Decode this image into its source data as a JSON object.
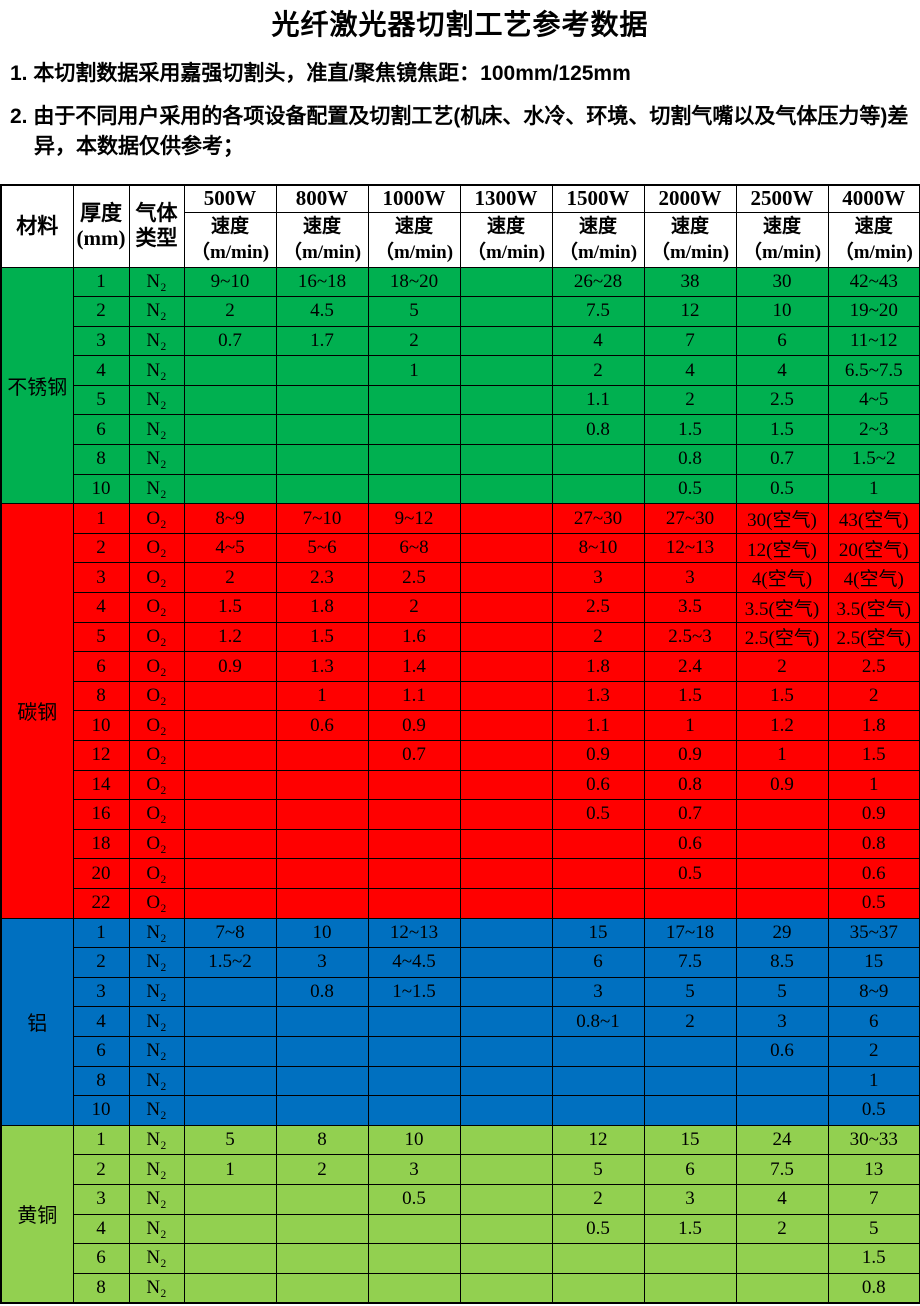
{
  "title": "光纤激光器切割工艺参考数据",
  "notes": {
    "note1": "1. 本切割数据采用嘉强切割头，准直/聚焦镜焦距：100mm/125mm",
    "note2": "2. 由于不同用户采用的各项设备配置及切割工艺(机床、水冷、环境、切割气嘴以及气体压力等)差异，本数据仅供参考；"
  },
  "table": {
    "header": {
      "material": "材料",
      "thickness": "厚度\n(mm)",
      "gas": "气体\n类型",
      "powers": [
        "500W",
        "800W",
        "1000W",
        "1300W",
        "1500W",
        "2000W",
        "2500W",
        "4000W"
      ],
      "speed_label": "速度\n（m/min)"
    },
    "sections": [
      {
        "material": "不锈钢",
        "key": "stainless-steel",
        "color": "#00B050",
        "gas": "N₂",
        "rows": [
          {
            "thickness": "1",
            "gas": "N₂",
            "speeds": [
              "9~10",
              "16~18",
              "18~20",
              "",
              "26~28",
              "38",
              "30",
              "42~43"
            ]
          },
          {
            "thickness": "2",
            "gas": "N₂",
            "speeds": [
              "2",
              "4.5",
              "5",
              "",
              "7.5",
              "12",
              "10",
              "19~20"
            ]
          },
          {
            "thickness": "3",
            "gas": "N₂",
            "speeds": [
              "0.7",
              "1.7",
              "2",
              "",
              "4",
              "7",
              "6",
              "11~12"
            ]
          },
          {
            "thickness": "4",
            "gas": "N₂",
            "speeds": [
              "",
              "",
              "1",
              "",
              "2",
              "4",
              "4",
              "6.5~7.5"
            ]
          },
          {
            "thickness": "5",
            "gas": "N₂",
            "speeds": [
              "",
              "",
              "",
              "",
              "1.1",
              "2",
              "2.5",
              "4~5"
            ]
          },
          {
            "thickness": "6",
            "gas": "N₂",
            "speeds": [
              "",
              "",
              "",
              "",
              "0.8",
              "1.5",
              "1.5",
              "2~3"
            ]
          },
          {
            "thickness": "8",
            "gas": "N₂",
            "speeds": [
              "",
              "",
              "",
              "",
              "",
              "0.8",
              "0.7",
              "1.5~2"
            ]
          },
          {
            "thickness": "10",
            "gas": "N₂",
            "speeds": [
              "",
              "",
              "",
              "",
              "",
              "0.5",
              "0.5",
              "1"
            ]
          }
        ]
      },
      {
        "material": "碳钢",
        "key": "carbon-steel",
        "color": "#FF0000",
        "gas": "O₂",
        "rows": [
          {
            "thickness": "1",
            "gas": "O₂",
            "speeds": [
              "8~9",
              "7~10",
              "9~12",
              "",
              "27~30",
              "27~30",
              "30(空气)",
              "43(空气)"
            ]
          },
          {
            "thickness": "2",
            "gas": "O₂",
            "speeds": [
              "4~5",
              "5~6",
              "6~8",
              "",
              "8~10",
              "12~13",
              "12(空气)",
              "20(空气)"
            ]
          },
          {
            "thickness": "3",
            "gas": "O₂",
            "speeds": [
              "2",
              "2.3",
              "2.5",
              "",
              "3",
              "3",
              "4(空气)",
              "4(空气)"
            ]
          },
          {
            "thickness": "4",
            "gas": "O₂",
            "speeds": [
              "1.5",
              "1.8",
              "2",
              "",
              "2.5",
              "3.5",
              "3.5(空气)",
              "3.5(空气)"
            ]
          },
          {
            "thickness": "5",
            "gas": "O₂",
            "speeds": [
              "1.2",
              "1.5",
              "1.6",
              "",
              "2",
              "2.5~3",
              "2.5(空气)",
              "2.5(空气)"
            ]
          },
          {
            "thickness": "6",
            "gas": "O₂",
            "speeds": [
              "0.9",
              "1.3",
              "1.4",
              "",
              "1.8",
              "2.4",
              "2",
              "2.5"
            ]
          },
          {
            "thickness": "8",
            "gas": "O₂",
            "speeds": [
              "",
              "1",
              "1.1",
              "",
              "1.3",
              "1.5",
              "1.5",
              "2"
            ]
          },
          {
            "thickness": "10",
            "gas": "O₂",
            "speeds": [
              "",
              "0.6",
              "0.9",
              "",
              "1.1",
              "1",
              "1.2",
              "1.8"
            ]
          },
          {
            "thickness": "12",
            "gas": "O₂",
            "speeds": [
              "",
              "",
              "0.7",
              "",
              "0.9",
              "0.9",
              "1",
              "1.5"
            ]
          },
          {
            "thickness": "14",
            "gas": "O₂",
            "speeds": [
              "",
              "",
              "",
              "",
              "0.6",
              "0.8",
              "0.9",
              "1"
            ]
          },
          {
            "thickness": "16",
            "gas": "O₂",
            "speeds": [
              "",
              "",
              "",
              "",
              "0.5",
              "0.7",
              "",
              "0.9"
            ]
          },
          {
            "thickness": "18",
            "gas": "O₂",
            "speeds": [
              "",
              "",
              "",
              "",
              "",
              "0.6",
              "",
              "0.8"
            ]
          },
          {
            "thickness": "20",
            "gas": "O₂",
            "speeds": [
              "",
              "",
              "",
              "",
              "",
              "0.5",
              "",
              "0.6"
            ]
          },
          {
            "thickness": "22",
            "gas": "O₂",
            "speeds": [
              "",
              "",
              "",
              "",
              "",
              "",
              "",
              "0.5"
            ]
          }
        ]
      },
      {
        "material": "铝",
        "key": "aluminum",
        "color": "#0070C0",
        "gas": "N₂",
        "rows": [
          {
            "thickness": "1",
            "gas": "N₂",
            "speeds": [
              "7~8",
              "10",
              "12~13",
              "",
              "15",
              "17~18",
              "29",
              "35~37"
            ]
          },
          {
            "thickness": "2",
            "gas": "N₂",
            "speeds": [
              "1.5~2",
              "3",
              "4~4.5",
              "",
              "6",
              "7.5",
              "8.5",
              "15"
            ]
          },
          {
            "thickness": "3",
            "gas": "N₂",
            "speeds": [
              "",
              "0.8",
              "1~1.5",
              "",
              "3",
              "5",
              "5",
              "8~9"
            ]
          },
          {
            "thickness": "4",
            "gas": "N₂",
            "speeds": [
              "",
              "",
              "",
              "",
              "0.8~1",
              "2",
              "3",
              "6"
            ]
          },
          {
            "thickness": "6",
            "gas": "N₂",
            "speeds": [
              "",
              "",
              "",
              "",
              "",
              "",
              "0.6",
              "2"
            ]
          },
          {
            "thickness": "8",
            "gas": "N₂",
            "speeds": [
              "",
              "",
              "",
              "",
              "",
              "",
              "",
              "1"
            ]
          },
          {
            "thickness": "10",
            "gas": "N₂",
            "speeds": [
              "",
              "",
              "",
              "",
              "",
              "",
              "",
              "0.5"
            ]
          }
        ]
      },
      {
        "material": "黄铜",
        "key": "brass",
        "color": "#92D050",
        "gas": "N₂",
        "rows": [
          {
            "thickness": "1",
            "gas": "N₂",
            "speeds": [
              "5",
              "8",
              "10",
              "",
              "12",
              "15",
              "24",
              "30~33"
            ]
          },
          {
            "thickness": "2",
            "gas": "N₂",
            "speeds": [
              "1",
              "2",
              "3",
              "",
              "5",
              "6",
              "7.5",
              "13"
            ]
          },
          {
            "thickness": "3",
            "gas": "N₂",
            "speeds": [
              "",
              "",
              "0.5",
              "",
              "2",
              "3",
              "4",
              "7"
            ]
          },
          {
            "thickness": "4",
            "gas": "N₂",
            "speeds": [
              "",
              "",
              "",
              "",
              "0.5",
              "1.5",
              "2",
              "5"
            ]
          },
          {
            "thickness": "6",
            "gas": "N₂",
            "speeds": [
              "",
              "",
              "",
              "",
              "",
              "",
              "",
              "1.5"
            ]
          },
          {
            "thickness": "8",
            "gas": "N₂",
            "speeds": [
              "",
              "",
              "",
              "",
              "",
              "",
              "",
              "0.8"
            ]
          }
        ]
      }
    ]
  }
}
